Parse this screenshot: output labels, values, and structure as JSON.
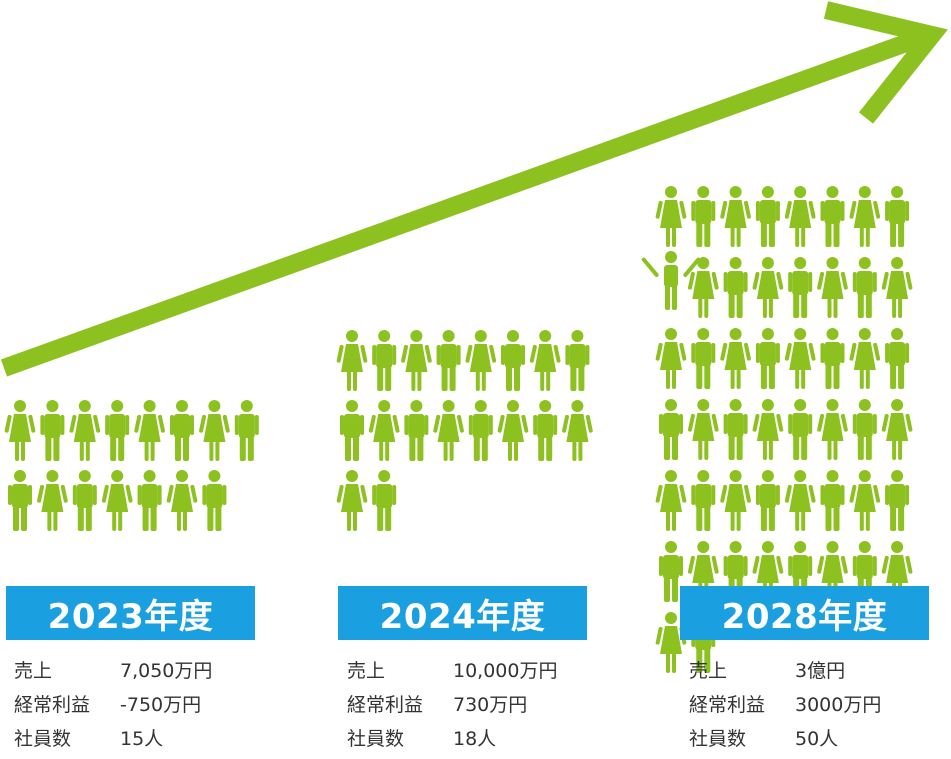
{
  "colors": {
    "green": "#8cc11f",
    "blue": "#1a9fe0",
    "text": "#333333"
  },
  "years": [
    {
      "title": "2023年度",
      "headcount": 15,
      "stats": [
        {
          "label": "売上",
          "value": "7,050万円"
        },
        {
          "label": "経常利益",
          "value": "-750万円"
        },
        {
          "label": "社員数",
          "value": "15人"
        }
      ]
    },
    {
      "title": "2024年度",
      "headcount": 18,
      "stats": [
        {
          "label": "売上",
          "value": "10,000万円"
        },
        {
          "label": "経常利益",
          "value": "730万円"
        },
        {
          "label": "社員数",
          "value": "18人"
        }
      ]
    },
    {
      "title": "2028年度",
      "headcount": 50,
      "stats": [
        {
          "label": "売上",
          "value": "3億円"
        },
        {
          "label": "経常利益",
          "value": "3000万円"
        },
        {
          "label": "社員数",
          "value": "50人"
        }
      ]
    }
  ],
  "icons": {
    "arrow": "growth-arrow-icon",
    "person_male": "man-icon",
    "person_female": "woman-icon",
    "person_cheer": "cheering-person-icon"
  }
}
